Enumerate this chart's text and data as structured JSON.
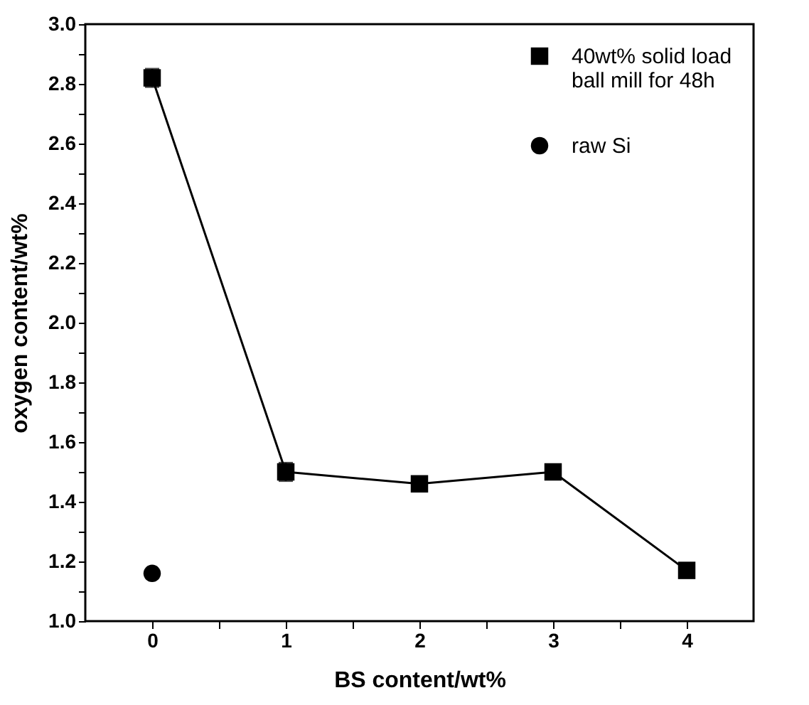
{
  "chart_data": {
    "type": "line",
    "xlabel": "BS content/wt%",
    "ylabel": "oxygen content/wt%",
    "xlim": [
      -0.5,
      4.5
    ],
    "xticks": [
      0,
      {
        "value": 0.5,
        "label": null
      },
      1,
      {
        "value": 1.5,
        "label": null
      },
      2,
      {
        "value": 2.5,
        "label": null
      },
      3,
      {
        "value": 3.5,
        "label": null
      },
      4
    ],
    "ylim": [
      1.0,
      3.0
    ],
    "yticks": [
      {
        "value": 1.0,
        "label": "1.0"
      },
      {
        "value": 1.1,
        "label": null
      },
      1.2,
      {
        "value": 1.3,
        "label": null
      },
      1.4,
      {
        "value": 1.5,
        "label": null
      },
      1.6,
      {
        "value": 1.7,
        "label": null
      },
      1.8,
      {
        "value": 1.9,
        "label": null
      },
      {
        "value": 2.0,
        "label": "2.0"
      },
      {
        "value": 2.1,
        "label": null
      },
      2.2,
      {
        "value": 2.3,
        "label": null
      },
      2.4,
      {
        "value": 2.5,
        "label": null
      },
      2.6,
      {
        "value": 2.7,
        "label": null
      },
      2.8,
      {
        "value": 2.9,
        "label": null
      },
      {
        "value": 3.0,
        "label": "3.0"
      }
    ],
    "legend": "top right",
    "series": [
      {
        "name": "40wt% solid load\nball mill for 48h",
        "type": "line",
        "marker": "square",
        "color": "#000000",
        "x": [
          0,
          1,
          2,
          3,
          4
        ],
        "values": [
          2.82,
          1.5,
          1.46,
          1.5,
          1.17
        ],
        "errors": [
          0.03,
          0.03,
          null,
          null,
          null
        ]
      },
      {
        "name": "raw Si",
        "type": "scatter",
        "marker": "circle",
        "color": "#000000",
        "x": [
          0
        ],
        "values": [
          1.16
        ]
      }
    ]
  }
}
